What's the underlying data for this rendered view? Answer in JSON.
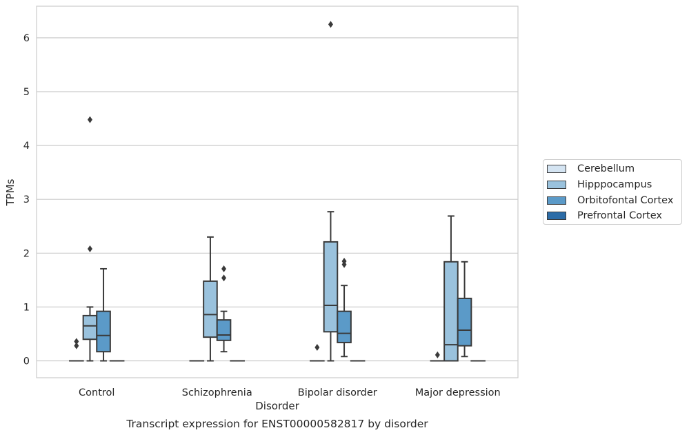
{
  "chart_data": {
    "type": "box",
    "title": "",
    "xlabel": "Disorder",
    "ylabel": "TPMs",
    "caption": "Transcript expression for ENST00000582817 by disorder",
    "categories": [
      "Control",
      "Schizophrenia",
      "Bipolar disorder",
      "Major depression"
    ],
    "y_ticks": [
      "0",
      "1",
      "2",
      "3",
      "4",
      "5",
      "6"
    ],
    "ylim": [
      -0.3,
      6.6
    ],
    "grid": "horizontal",
    "legend_position": "right",
    "series": [
      {
        "name": "Cerebellum",
        "color": "#d4e4f2",
        "boxes": [
          {
            "q1": 0,
            "median": 0,
            "q3": 0,
            "whisker_low": 0,
            "whisker_high": 0,
            "outliers": [
              0.28,
              0.36
            ]
          },
          {
            "q1": 0,
            "median": 0,
            "q3": 0,
            "whisker_low": 0,
            "whisker_high": 0,
            "outliers": []
          },
          {
            "q1": 0,
            "median": 0,
            "q3": 0,
            "whisker_low": 0,
            "whisker_high": 0,
            "outliers": [
              0.25
            ]
          },
          {
            "q1": 0,
            "median": 0,
            "q3": 0,
            "whisker_low": 0,
            "whisker_high": 0,
            "outliers": [
              0.11
            ]
          }
        ]
      },
      {
        "name": "Hipppocampus",
        "color": "#9ac2dd",
        "boxes": [
          {
            "q1": 0.4,
            "median": 0.65,
            "q3": 0.84,
            "whisker_low": 0,
            "whisker_high": 1.0,
            "outliers": [
              2.08,
              4.48
            ]
          },
          {
            "q1": 0.44,
            "median": 0.86,
            "q3": 1.48,
            "whisker_low": 0,
            "whisker_high": 2.3,
            "outliers": []
          },
          {
            "q1": 0.54,
            "median": 1.03,
            "q3": 2.21,
            "whisker_low": 0,
            "whisker_high": 2.77,
            "outliers": [
              6.25
            ]
          },
          {
            "q1": 0,
            "median": 0.3,
            "q3": 1.84,
            "whisker_low": 0,
            "whisker_high": 2.69,
            "outliers": []
          }
        ]
      },
      {
        "name": "Orbitofontal Cortex",
        "color": "#5b9ac8",
        "boxes": [
          {
            "q1": 0.17,
            "median": 0.47,
            "q3": 0.92,
            "whisker_low": 0,
            "whisker_high": 1.71,
            "outliers": []
          },
          {
            "q1": 0.38,
            "median": 0.48,
            "q3": 0.76,
            "whisker_low": 0.17,
            "whisker_high": 0.92,
            "outliers": [
              1.54,
              1.71
            ]
          },
          {
            "q1": 0.34,
            "median": 0.51,
            "q3": 0.92,
            "whisker_low": 0.08,
            "whisker_high": 1.4,
            "outliers": [
              1.79,
              1.85
            ]
          },
          {
            "q1": 0.28,
            "median": 0.57,
            "q3": 1.16,
            "whisker_low": 0.08,
            "whisker_high": 1.84,
            "outliers": []
          }
        ]
      },
      {
        "name": "Prefrontal Cortex",
        "color": "#2c6ca7",
        "boxes": [
          {
            "q1": 0,
            "median": 0,
            "q3": 0,
            "whisker_low": 0,
            "whisker_high": 0,
            "outliers": []
          },
          {
            "q1": 0,
            "median": 0,
            "q3": 0,
            "whisker_low": 0,
            "whisker_high": 0,
            "outliers": []
          },
          {
            "q1": 0,
            "median": 0,
            "q3": 0,
            "whisker_low": 0,
            "whisker_high": 0,
            "outliers": []
          },
          {
            "q1": 0,
            "median": 0,
            "q3": 0,
            "whisker_low": 0,
            "whisker_high": 0,
            "outliers": []
          }
        ]
      }
    ]
  }
}
